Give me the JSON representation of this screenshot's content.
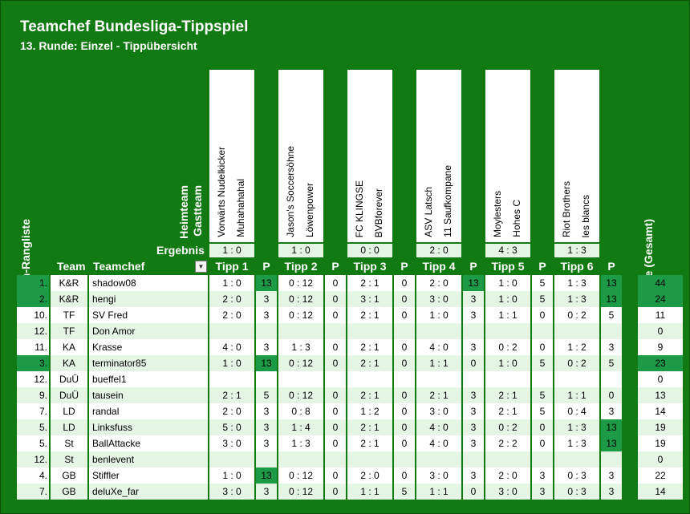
{
  "title": "Teamchef Bundesliga-Tippspiel",
  "subtitle": "13. Runde: Einzel - Tippübersicht",
  "labels": {
    "rank": "Runden-Rangliste",
    "heimteam": "Heimteam",
    "gastteam": "Gastteam",
    "ergebnis": "Ergebnis",
    "points_total": "Punkte (Gesamt)"
  },
  "headers": {
    "team": "Team",
    "teamchef": "Teamchef",
    "tipp1": "Tipp 1",
    "tipp2": "Tipp 2",
    "tipp3": "Tipp 3",
    "tipp4": "Tipp 4",
    "tipp5": "Tipp 5",
    "tipp6": "Tipp 6",
    "p": "P"
  },
  "icons": {
    "filter": "dropdown-filter-icon"
  },
  "colors": {
    "background": "#127a12",
    "row_alt": "#e4f5e4",
    "highlight": "#1c9a46"
  },
  "matches": [
    {
      "home": "Vorwärts Nudelkicker",
      "away": "Muhahahahal",
      "result": "1 : 0"
    },
    {
      "home": "Jason's Soccersöhne",
      "away": "Löwenpower",
      "result": "1 : 0"
    },
    {
      "home": "FC KLINGSE",
      "away": "BVBforever",
      "result": "0 : 0"
    },
    {
      "home": "ASV Latsch",
      "away": "11 Saufkompane",
      "result": "2 : 0"
    },
    {
      "home": "Moylesters",
      "away": "Hohes C",
      "result": "4 : 3"
    },
    {
      "home": "Riot Brothers",
      "away": "les blancs",
      "result": "1 : 3"
    }
  ],
  "rows": [
    {
      "rank": "1.",
      "team": "K&R",
      "chef": "shadow08",
      "tips": [
        "1 : 0",
        "0 : 12",
        "2 : 1",
        "2 : 0",
        "1 : 0",
        "1 : 3"
      ],
      "points": [
        "13",
        "0",
        "0",
        "13",
        "5",
        "13"
      ],
      "total": "44",
      "hl": [
        1,
        0,
        0,
        1,
        0,
        1
      ],
      "rank_hl": 1,
      "total_hl": 1
    },
    {
      "rank": "2.",
      "team": "K&R",
      "chef": "hengi",
      "tips": [
        "2 : 0",
        "0 : 12",
        "3 : 1",
        "3 : 0",
        "1 : 0",
        "1 : 3"
      ],
      "points": [
        "3",
        "0",
        "0",
        "3",
        "5",
        "13"
      ],
      "total": "24",
      "hl": [
        0,
        0,
        0,
        0,
        0,
        1
      ],
      "rank_hl": 1,
      "total_hl": 1
    },
    {
      "rank": "10.",
      "team": "TF",
      "chef": "SV Fred",
      "tips": [
        "2 : 0",
        "0 : 12",
        "2 : 1",
        "1 : 0",
        "1 : 1",
        "0 : 2"
      ],
      "points": [
        "3",
        "0",
        "0",
        "3",
        "0",
        "5"
      ],
      "total": "11",
      "hl": [
        0,
        0,
        0,
        0,
        0,
        0
      ],
      "rank_hl": 0,
      "total_hl": 0
    },
    {
      "rank": "12.",
      "team": "TF",
      "chef": "Don Amor",
      "tips": [
        "",
        "",
        "",
        "",
        "",
        ""
      ],
      "points": [
        "",
        "",
        "",
        "",
        "",
        ""
      ],
      "total": "0",
      "hl": [
        0,
        0,
        0,
        0,
        0,
        0
      ],
      "rank_hl": 0,
      "total_hl": 0
    },
    {
      "rank": "11.",
      "team": "KA",
      "chef": "Krasse",
      "tips": [
        "4 : 0",
        "1 : 3",
        "2 : 1",
        "4 : 0",
        "0 : 2",
        "1 : 2"
      ],
      "points": [
        "3",
        "0",
        "0",
        "3",
        "0",
        "3"
      ],
      "total": "9",
      "hl": [
        0,
        0,
        0,
        0,
        0,
        0
      ],
      "rank_hl": 0,
      "total_hl": 0
    },
    {
      "rank": "3.",
      "team": "KA",
      "chef": "terminator85",
      "tips": [
        "1 : 0",
        "0 : 12",
        "2 : 1",
        "1 : 1",
        "1 : 0",
        "0 : 2"
      ],
      "points": [
        "13",
        "0",
        "0",
        "0",
        "5",
        "5"
      ],
      "total": "23",
      "hl": [
        1,
        0,
        0,
        0,
        0,
        0
      ],
      "rank_hl": 1,
      "total_hl": 1
    },
    {
      "rank": "12.",
      "team": "DuÜ",
      "chef": "bueffel1",
      "tips": [
        "",
        "",
        "",
        "",
        "",
        ""
      ],
      "points": [
        "",
        "",
        "",
        "",
        "",
        ""
      ],
      "total": "0",
      "hl": [
        0,
        0,
        0,
        0,
        0,
        0
      ],
      "rank_hl": 0,
      "total_hl": 0
    },
    {
      "rank": "9.",
      "team": "DuÜ",
      "chef": "tausein",
      "tips": [
        "2 : 1",
        "0 : 12",
        "2 : 1",
        "2 : 1",
        "2 : 1",
        "1 : 1"
      ],
      "points": [
        "5",
        "0",
        "0",
        "3",
        "5",
        "0"
      ],
      "total": "13",
      "hl": [
        0,
        0,
        0,
        0,
        0,
        0
      ],
      "rank_hl": 0,
      "total_hl": 0
    },
    {
      "rank": "7.",
      "team": "LD",
      "chef": "randal",
      "tips": [
        "2 : 0",
        "0 : 8",
        "1 : 2",
        "3 : 0",
        "2 : 1",
        "0 : 4"
      ],
      "points": [
        "3",
        "0",
        "0",
        "3",
        "5",
        "3"
      ],
      "total": "14",
      "hl": [
        0,
        0,
        0,
        0,
        0,
        0
      ],
      "rank_hl": 0,
      "total_hl": 0
    },
    {
      "rank": "5.",
      "team": "LD",
      "chef": "Linksfuss",
      "tips": [
        "5 : 0",
        "1 : 4",
        "2 : 1",
        "4 : 0",
        "0 : 2",
        "1 : 3"
      ],
      "points": [
        "3",
        "0",
        "0",
        "3",
        "0",
        "13"
      ],
      "total": "19",
      "hl": [
        0,
        0,
        0,
        0,
        0,
        1
      ],
      "rank_hl": 0,
      "total_hl": 0
    },
    {
      "rank": "5.",
      "team": "St",
      "chef": "BallAttacke",
      "tips": [
        "3 : 0",
        "1 : 3",
        "2 : 1",
        "4 : 0",
        "2 : 2",
        "1 : 3"
      ],
      "points": [
        "3",
        "0",
        "0",
        "3",
        "0",
        "13"
      ],
      "total": "19",
      "hl": [
        0,
        0,
        0,
        0,
        0,
        1
      ],
      "rank_hl": 0,
      "total_hl": 0
    },
    {
      "rank": "12.",
      "team": "St",
      "chef": "benlevent",
      "tips": [
        "",
        "",
        "",
        "",
        "",
        ""
      ],
      "points": [
        "",
        "",
        "",
        "",
        "",
        ""
      ],
      "total": "0",
      "hl": [
        0,
        0,
        0,
        0,
        0,
        0
      ],
      "rank_hl": 0,
      "total_hl": 0
    },
    {
      "rank": "4.",
      "team": "GB",
      "chef": "Stiffler",
      "tips": [
        "1 : 0",
        "0 : 12",
        "2 : 0",
        "3 : 0",
        "2 : 0",
        "0 : 3"
      ],
      "points": [
        "13",
        "0",
        "0",
        "3",
        "3",
        "3"
      ],
      "total": "22",
      "hl": [
        1,
        0,
        0,
        0,
        0,
        0
      ],
      "rank_hl": 0,
      "total_hl": 0
    },
    {
      "rank": "7.",
      "team": "GB",
      "chef": "deluXe_far",
      "tips": [
        "3 : 0",
        "0 : 12",
        "1 : 1",
        "1 : 1",
        "3 : 0",
        "0 : 3"
      ],
      "points": [
        "3",
        "0",
        "5",
        "0",
        "3",
        "3"
      ],
      "total": "14",
      "hl": [
        0,
        0,
        0,
        0,
        0,
        0
      ],
      "rank_hl": 0,
      "total_hl": 0
    }
  ]
}
